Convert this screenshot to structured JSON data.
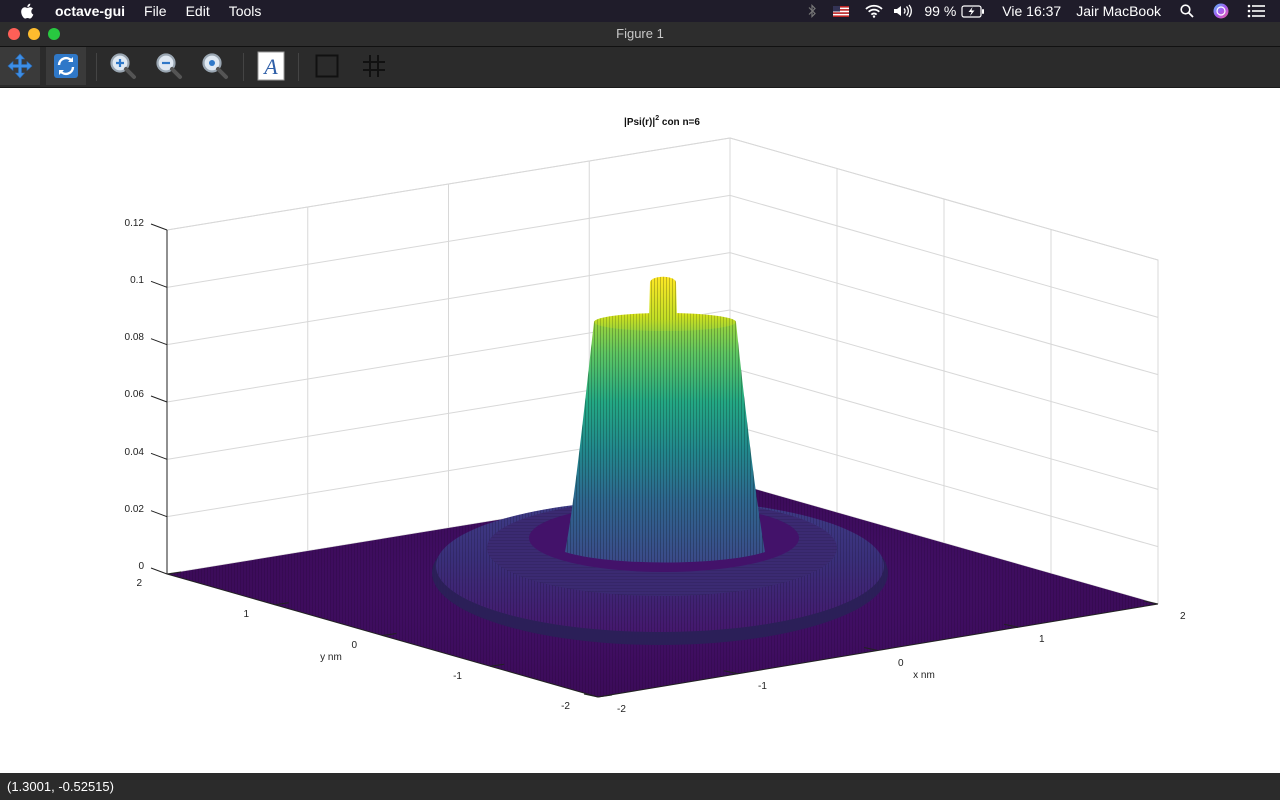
{
  "menubar": {
    "app_name": "octave-gui",
    "items": [
      "File",
      "Edit",
      "Tools"
    ],
    "battery": "99 %",
    "clock": "Vie 16:37",
    "user": "Jair MacBook"
  },
  "window": {
    "title": "Figure 1"
  },
  "toolbar": {
    "buttons": [
      "pan-icon",
      "rotate-icon",
      "zoom-in-icon",
      "zoom-out-icon",
      "zoom-reset-icon",
      "text-annotation-icon",
      "axes-box-icon",
      "grid-icon"
    ]
  },
  "chart_data": {
    "type": "surface",
    "title": "|Psi(r)|",
    "title_superscript": "2",
    "title_suffix": " con n=6",
    "xlabel": "x nm",
    "ylabel": "y nm",
    "x_ticks": [
      "-2",
      "-1",
      "0",
      "1",
      "2"
    ],
    "y_ticks": [
      "-2",
      "-1",
      "0",
      "1",
      "2"
    ],
    "z_ticks": [
      "0",
      "0.02",
      "0.04",
      "0.06",
      "0.08",
      "0.1",
      "0.12"
    ],
    "xlim": [
      -2,
      2
    ],
    "ylim": [
      -2,
      2
    ],
    "zlim": [
      0,
      0.12
    ],
    "colormap": "viridis",
    "grid": true,
    "peak_value": 0.105,
    "plateau_value": 0.086,
    "outer_ring_value": 0.012
  },
  "statusbar": {
    "coords": "(1.3001, -0.52515)"
  }
}
